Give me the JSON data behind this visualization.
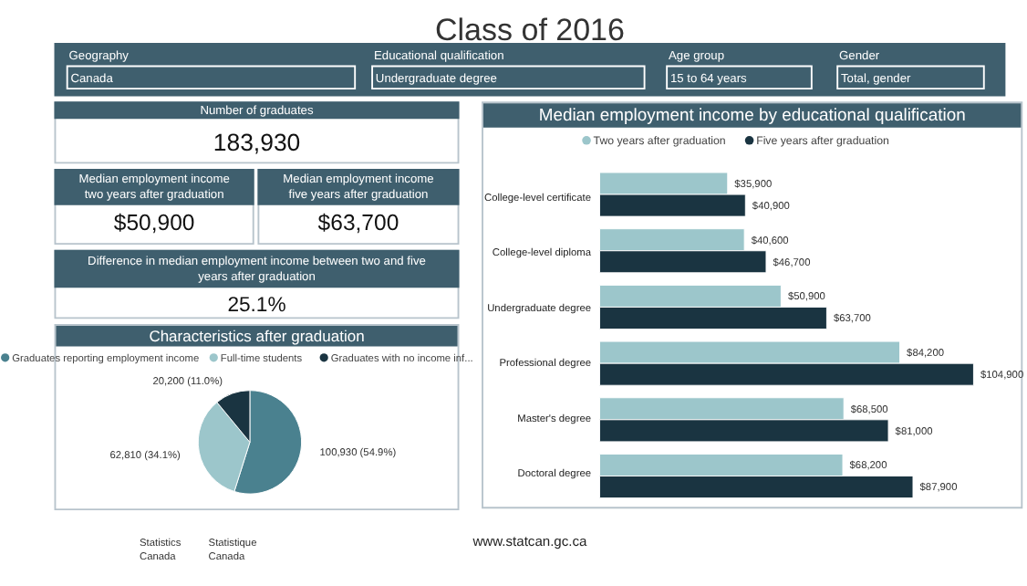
{
  "chart_data": [
    {
      "type": "other",
      "title": "Class of 2016",
      "annotations": [
        "Geography",
        "Canada",
        "Educational qualification",
        "Undergraduate degree",
        "Age group",
        "15 to 64 years",
        "Gender",
        "Total, gender",
        "Statistics Canada",
        "Statistique Canada",
        "www.statcan.gc.ca"
      ]
    },
    {
      "type": "other",
      "annotations": [
        "Number of graduates",
        "183,930",
        "Median employment income two years after graduation",
        "$50,900",
        "Median employment income five years after graduation",
        "$63,700",
        "Difference in median employment income between two and five years after graduation",
        "25.1%"
      ]
    },
    {
      "type": "pie",
      "title": "Characteristics after graduation",
      "categories": [
        "Graduates reporting employment income",
        "Full-time students",
        "Graduates with no income inf..."
      ],
      "values": [
        100930,
        62810,
        20200
      ],
      "colors": [
        "#4a818f",
        "#9cc6cb",
        "#1a3441"
      ],
      "value_labels": [
        "100,930 (54.9%)",
        "62,810 (34.1%)",
        "20,200 (11.0%)"
      ],
      "legend": "top"
    },
    {
      "type": "bar",
      "orientation": "horizontal",
      "title": "Median employment income by educational qualification",
      "categories": [
        "College-level certificate",
        "College-level diploma",
        "Undergraduate degree",
        "Professional degree",
        "Master's degree",
        "Doctoral degree"
      ],
      "legend": "top",
      "series": [
        {
          "name": "Two years after graduation",
          "color": "#9cc6cb",
          "values": [
            35900,
            40600,
            50900,
            84200,
            68500,
            68200
          ],
          "value_labels": [
            "$35,900",
            "$40,600",
            "$50,900",
            "$84,200",
            "$68,500",
            "$68,200"
          ]
        },
        {
          "name": "Five years after graduation",
          "color": "#1a3441",
          "values": [
            40900,
            46700,
            63700,
            104900,
            81000,
            87900
          ],
          "value_labels": [
            "$40,900",
            "$46,700",
            "$63,700",
            "$104,900",
            "$81,000",
            "$87,900"
          ]
        }
      ]
    }
  ]
}
